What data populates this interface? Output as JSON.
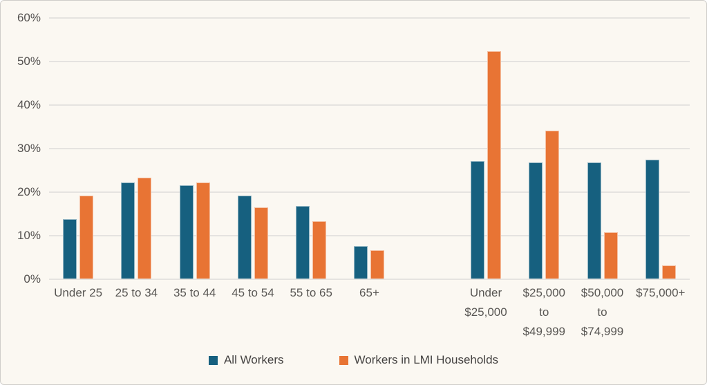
{
  "chart_data": {
    "type": "bar",
    "title": "",
    "xlabel": "",
    "ylabel": "",
    "ylim": [
      0,
      60
    ],
    "ytick_step": 10,
    "ytick_labels": [
      "60%",
      "50%",
      "40%",
      "30%",
      "20%",
      "10%",
      "0%"
    ],
    "grid": true,
    "legend_position": "bottom-center",
    "series_meta": [
      {
        "name": "All Workers",
        "color": "#16607f"
      },
      {
        "name": "Workers in LMI Households",
        "color": "#e87434"
      }
    ],
    "groups": [
      {
        "name": "age",
        "categories": [
          "Under 25",
          "25 to 34",
          "35 to 44",
          "45 to 54",
          "55 to 65",
          "65+"
        ],
        "series": [
          {
            "name": "All Workers",
            "values": [
              13.6,
              22.0,
              21.5,
              19.1,
              16.6,
              7.5
            ]
          },
          {
            "name": "Workers in LMI Households",
            "values": [
              19.1,
              23.1,
              22.0,
              16.3,
              13.2,
              6.5
            ]
          }
        ]
      },
      {
        "name": "income",
        "categories": [
          "Under\n$25,000",
          "$25,000\nto\n$49,999",
          "$50,000\nto\n$74,999",
          "$75,000+"
        ],
        "series": [
          {
            "name": "All Workers",
            "values": [
              27.0,
              26.7,
              26.7,
              27.3
            ]
          },
          {
            "name": "Workers in LMI Households",
            "values": [
              52.3,
              34.0,
              10.7,
              3.0
            ]
          }
        ]
      }
    ],
    "layout": {
      "group_spacer_slots": 1,
      "background": "#fbf8f2",
      "gridline_color": "#e5e3e0",
      "axis_text_color": "#555250"
    }
  }
}
